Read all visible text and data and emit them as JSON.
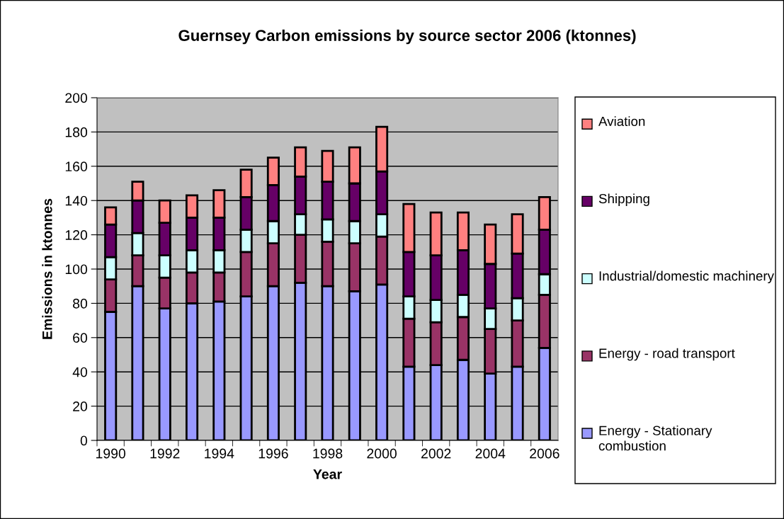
{
  "chart_data": {
    "type": "bar",
    "title": "Guernsey Carbon emissions by source sector 2006 (ktonnes)",
    "xlabel": "Year",
    "ylabel": "Emissions in ktonnes",
    "categories": [
      "1990",
      null,
      "1992",
      null,
      "1994",
      null,
      "1996",
      null,
      "1998",
      null,
      "2000",
      null,
      "2002",
      null,
      "2004",
      null,
      "2006"
    ],
    "stacked": true,
    "ylim": [
      0,
      200
    ],
    "yticks": [
      0,
      20,
      40,
      60,
      80,
      100,
      120,
      140,
      160,
      180,
      200
    ],
    "grid": "y",
    "legend": "right",
    "series": [
      {
        "name": "Energy - Stationary combustion",
        "color": "#9999ff",
        "values": [
          75,
          90,
          77,
          80,
          81,
          84,
          90,
          92,
          90,
          87,
          91,
          43,
          44,
          47,
          39,
          43,
          54
        ]
      },
      {
        "name": "Energy - road transport",
        "color": "#993366",
        "values": [
          19,
          18,
          18,
          18,
          17,
          26,
          25,
          28,
          26,
          28,
          28,
          28,
          25,
          25,
          26,
          27,
          31
        ]
      },
      {
        "name": "Industrial/domestic machinery",
        "color": "#ccffff",
        "values": [
          13,
          13,
          13,
          13,
          13,
          13,
          13,
          12,
          13,
          13,
          13,
          13,
          13,
          13,
          12,
          13,
          12
        ]
      },
      {
        "name": "Shipping",
        "color": "#660066",
        "values": [
          19,
          19,
          19,
          19,
          19,
          19,
          21,
          22,
          22,
          22,
          25,
          26,
          26,
          26,
          26,
          26,
          26
        ]
      },
      {
        "name": "Aviation",
        "color": "#ff8080",
        "values": [
          10,
          11,
          13,
          13,
          16,
          16,
          16,
          17,
          18,
          21,
          26,
          28,
          25,
          22,
          23,
          23,
          19
        ]
      }
    ]
  }
}
